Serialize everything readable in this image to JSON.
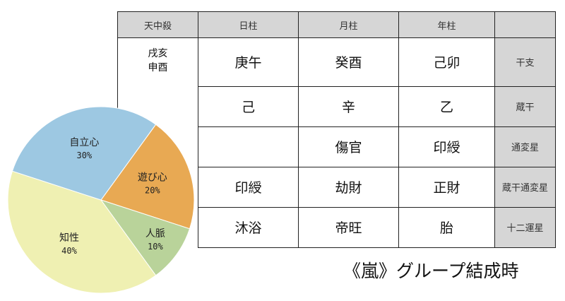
{
  "table": {
    "headers": [
      "天中殺",
      "日柱",
      "月柱",
      "年柱",
      ""
    ],
    "tenchusatsu": [
      "戌亥",
      "申酉"
    ],
    "rows": [
      {
        "cells": [
          "庚午",
          "癸酉",
          "己卯"
        ],
        "label": "干支"
      },
      {
        "cells": [
          "己",
          "辛",
          "乙"
        ],
        "label": "蔵干"
      },
      {
        "cells": [
          "",
          "傷官",
          "印綬"
        ],
        "label": "通変星"
      },
      {
        "cells": [
          "印綬",
          "劫財",
          "正財"
        ],
        "label": "蔵干通変星"
      },
      {
        "cells": [
          "沐浴",
          "帝旺",
          "胎"
        ],
        "label": "十二運星"
      }
    ]
  },
  "caption": "《嵐》グループ結成時",
  "chart_data": {
    "type": "pie",
    "title": "",
    "slices": [
      {
        "label": "遊び心",
        "value": 20,
        "value_label": "20%",
        "color": "#e8a953"
      },
      {
        "label": "人脈",
        "value": 10,
        "value_label": "10%",
        "color": "#b9d39a"
      },
      {
        "label": "知性",
        "value": 40,
        "value_label": "40%",
        "color": "#eff0b2"
      },
      {
        "label": "自立心",
        "value": 30,
        "value_label": "30%",
        "color": "#9dc8e2"
      }
    ],
    "start_angle_deg": 36,
    "direction": "clockwise"
  }
}
